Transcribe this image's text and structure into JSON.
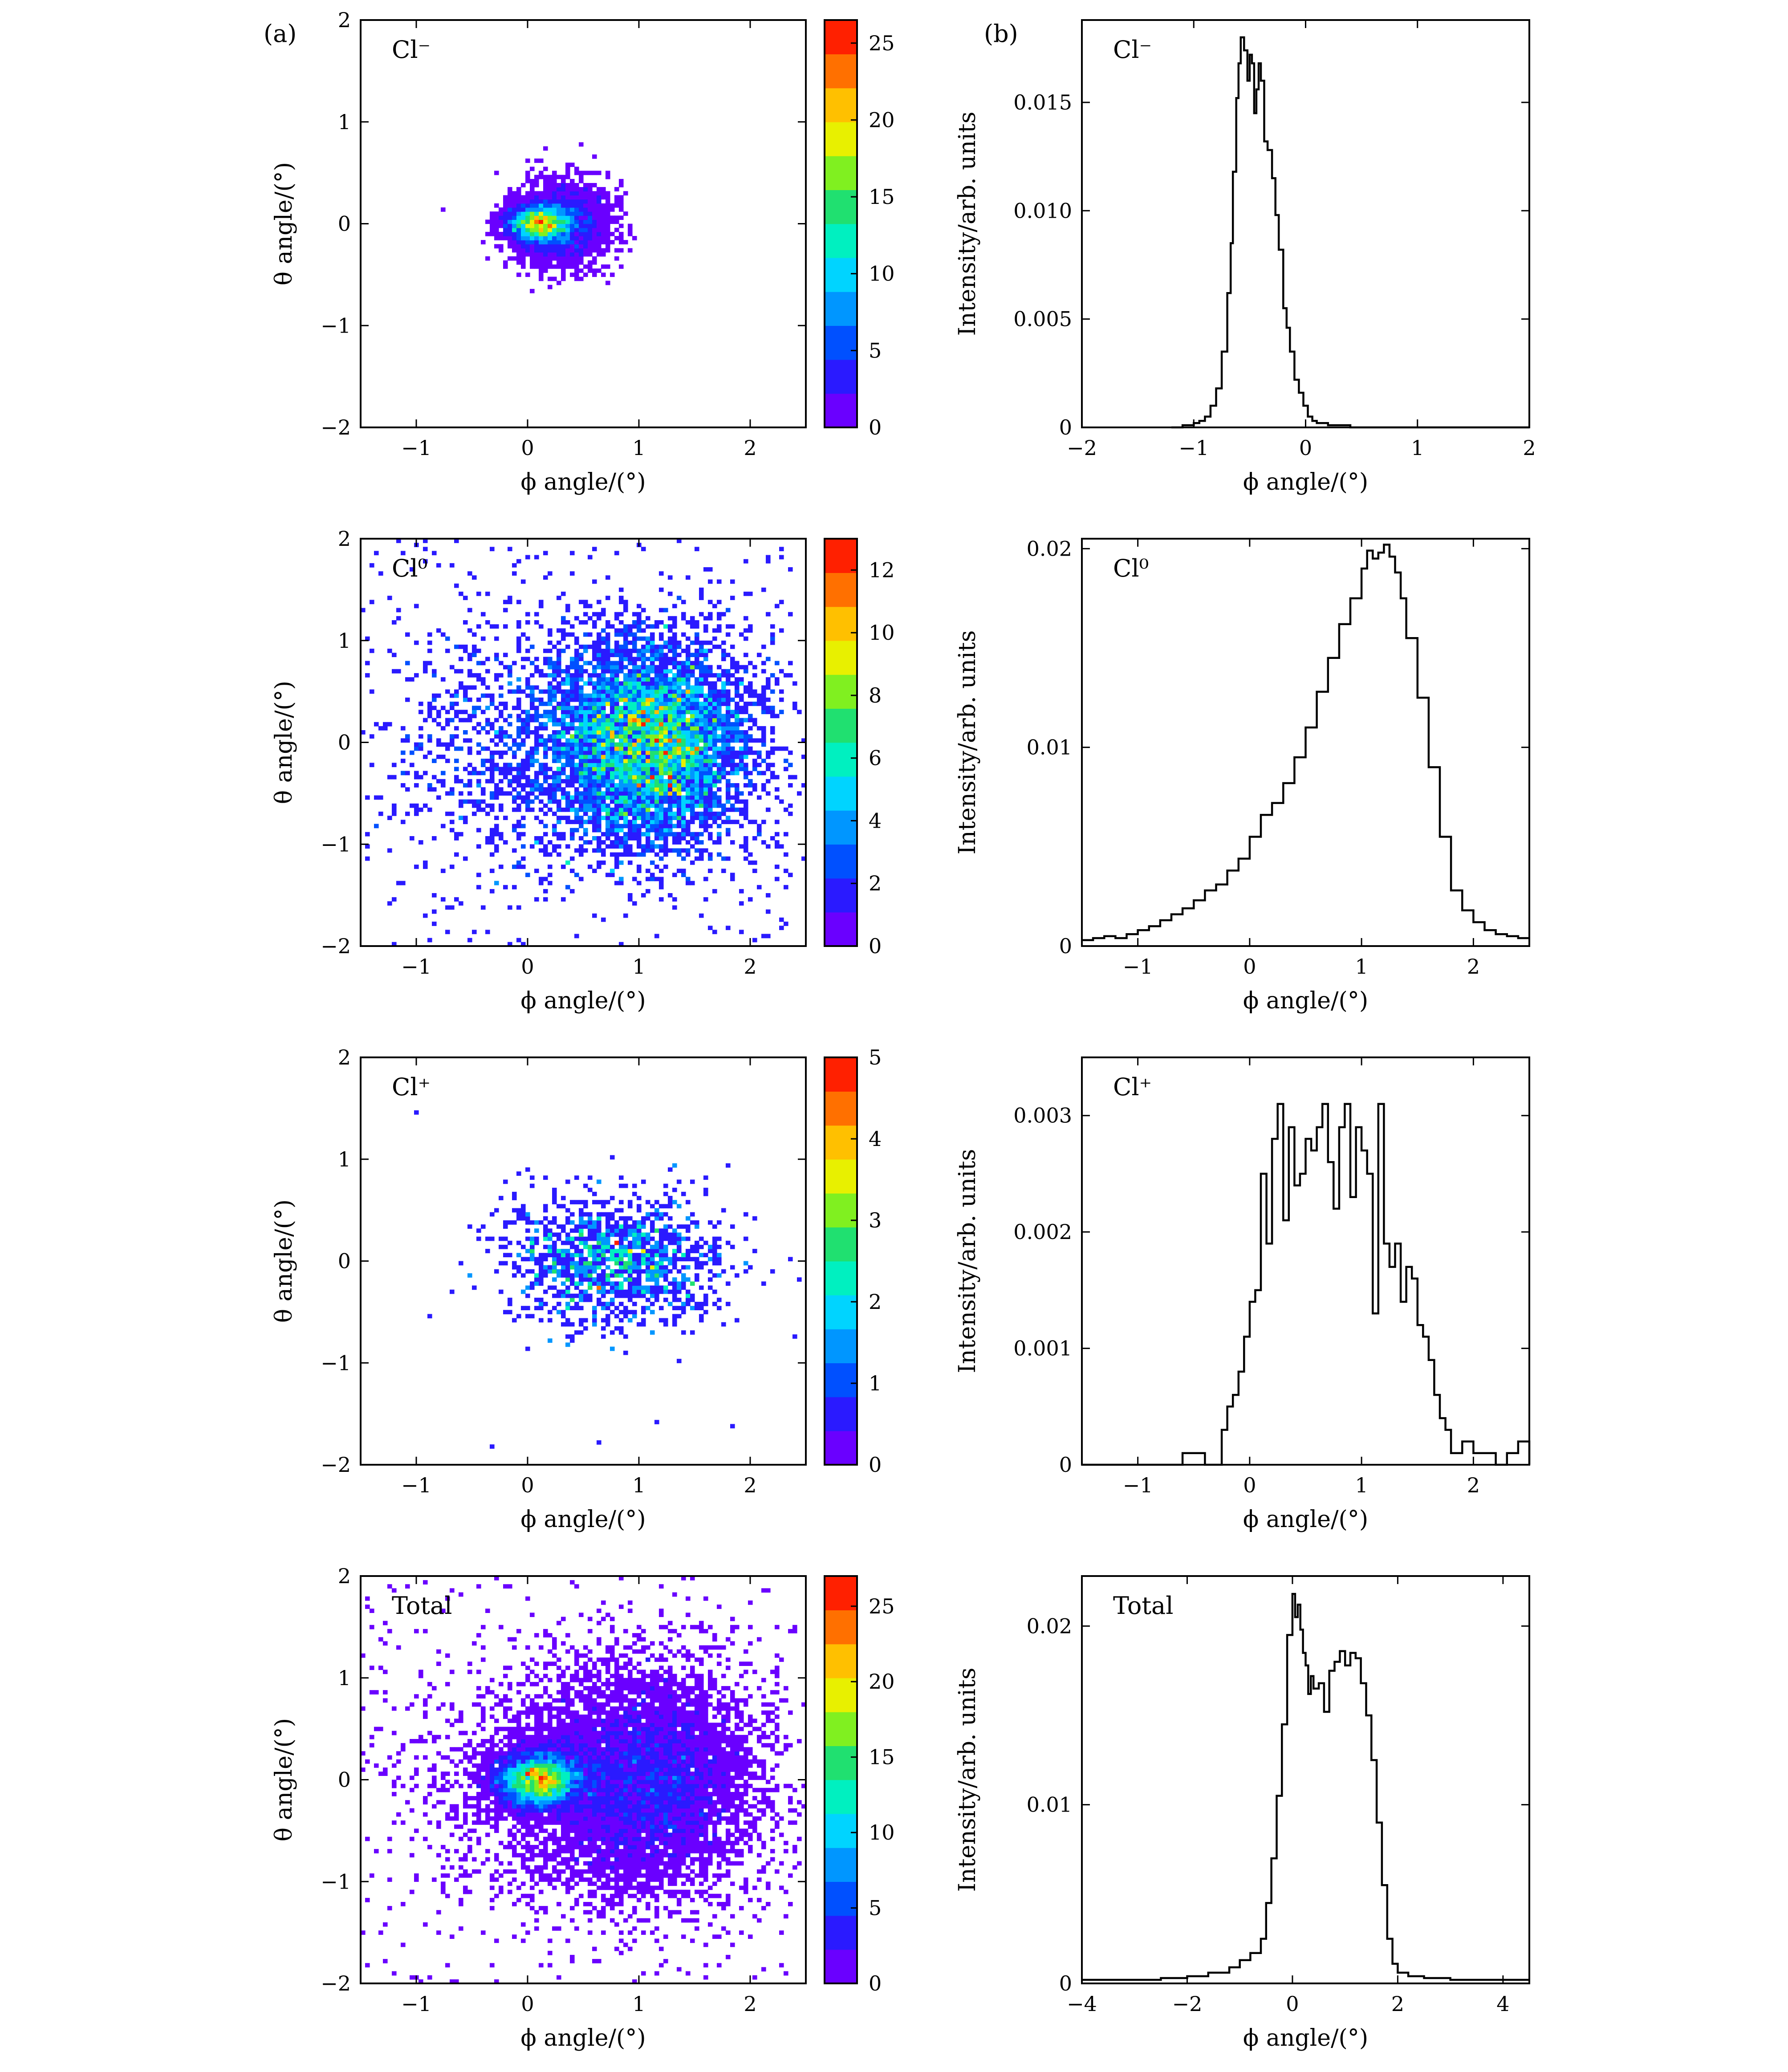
{
  "figure": {
    "panel_a_label": "(a)",
    "panel_b_label": "(b)"
  },
  "colorscale": [
    "#6a00ff",
    "#2a1aff",
    "#0050ff",
    "#0096ff",
    "#00d4ff",
    "#00f0c0",
    "#20e070",
    "#80f020",
    "#e8f000",
    "#ffc000",
    "#ff7000",
    "#ff2000"
  ],
  "chart_data": [
    {
      "type": "heatmap",
      "panel": "a",
      "row": 0,
      "label": "Cl⁻",
      "xlabel": "ϕ angle/(°)",
      "ylabel": "θ angle/(°)",
      "xlim": [
        -1.5,
        2.5
      ],
      "ylim": [
        -2,
        2
      ],
      "xticks": [
        -1,
        0,
        1,
        2
      ],
      "xtick_labels": [
        "−1",
        "0",
        "1",
        "2"
      ],
      "yticks": [
        -2,
        -1,
        0,
        1,
        2
      ],
      "ytick_labels": [
        "−2",
        "−1",
        "0",
        "1",
        "2"
      ],
      "colorbar": {
        "min": 0,
        "max": 26.5,
        "ticks": [
          0,
          5,
          10,
          15,
          20,
          25
        ],
        "tick_labels": [
          "0",
          "5",
          "10",
          "15",
          "20",
          "25"
        ]
      },
      "distribution": {
        "counts": 5200,
        "components": [
          {
            "weight": 0.55,
            "mx": 0.1,
            "my": 0.0,
            "sx": 0.15,
            "sy": 0.1
          },
          {
            "weight": 0.45,
            "mx": 0.3,
            "my": 0.0,
            "sx": 0.22,
            "sy": 0.2
          }
        ],
        "uniform_background": 0,
        "peak": 26
      }
    },
    {
      "type": "line",
      "panel": "b",
      "row": 0,
      "label": "Cl⁻",
      "xlabel": "ϕ angle/(°)",
      "ylabel": "Intensity/arb. units",
      "xlim": [
        -2,
        2
      ],
      "ylim": [
        0,
        0.0188
      ],
      "xticks": [
        -2,
        -1,
        0,
        1,
        2
      ],
      "xtick_labels": [
        "−2",
        "−1",
        "0",
        "1",
        "2"
      ],
      "yticks": [
        0,
        0.005,
        0.01,
        0.015
      ],
      "ytick_labels": [
        "0",
        "0.005",
        "0.010",
        "0.015"
      ],
      "step": true,
      "x": [
        -1.2,
        -1.1,
        -1.0,
        -0.95,
        -0.9,
        -0.85,
        -0.8,
        -0.75,
        -0.7,
        -0.67,
        -0.65,
        -0.62,
        -0.6,
        -0.58,
        -0.55,
        -0.52,
        -0.5,
        -0.48,
        -0.46,
        -0.44,
        -0.42,
        -0.4,
        -0.37,
        -0.34,
        -0.3,
        -0.27,
        -0.24,
        -0.2,
        -0.17,
        -0.14,
        -0.1,
        -0.06,
        -0.02,
        0.02,
        0.06,
        0.1,
        0.15,
        0.2,
        0.3,
        0.4,
        0.5
      ],
      "y": [
        0,
        0.0001,
        0.0002,
        0.0003,
        0.0005,
        0.001,
        0.0018,
        0.0035,
        0.0062,
        0.0085,
        0.0118,
        0.0152,
        0.0168,
        0.018,
        0.0174,
        0.016,
        0.0172,
        0.0168,
        0.0145,
        0.0156,
        0.0168,
        0.016,
        0.0132,
        0.0128,
        0.0115,
        0.0098,
        0.0082,
        0.0055,
        0.0046,
        0.0035,
        0.0022,
        0.0016,
        0.001,
        0.0005,
        0.0003,
        0.0002,
        0.0002,
        0.0001,
        0.0001,
        0.0,
        0.0
      ]
    },
    {
      "type": "heatmap",
      "panel": "a",
      "row": 1,
      "label": "Cl⁰",
      "xlabel": "ϕ angle/(°)",
      "ylabel": "θ angle/(°)",
      "xlim": [
        -1.5,
        2.5
      ],
      "ylim": [
        -2,
        2
      ],
      "xticks": [
        -1,
        0,
        1,
        2
      ],
      "xtick_labels": [
        "−1",
        "0",
        "1",
        "2"
      ],
      "yticks": [
        -2,
        -1,
        0,
        1,
        2
      ],
      "ytick_labels": [
        "−2",
        "−1",
        "0",
        "1",
        "2"
      ],
      "colorbar": {
        "min": 0,
        "max": 13,
        "ticks": [
          0,
          2,
          4,
          6,
          8,
          10,
          12
        ],
        "tick_labels": [
          "0",
          "2",
          "4",
          "6",
          "8",
          "10",
          "12"
        ]
      },
      "distribution": {
        "counts": 6500,
        "components": [
          {
            "weight": 0.72,
            "mx": 1.15,
            "my": 0.0,
            "sx": 0.42,
            "sy": 0.5
          },
          {
            "weight": 0.28,
            "mx": 0.4,
            "my": 0.0,
            "sx": 0.7,
            "sy": 0.6
          }
        ],
        "uniform_background": 320,
        "peak": 12
      }
    },
    {
      "type": "line",
      "panel": "b",
      "row": 1,
      "label": "Cl⁰",
      "xlabel": "ϕ angle/(°)",
      "ylabel": "Intensity/arb. units",
      "xlim": [
        -1.5,
        2.5
      ],
      "ylim": [
        0,
        0.0205
      ],
      "xticks": [
        -1,
        0,
        1,
        2
      ],
      "xtick_labels": [
        "−1",
        "0",
        "1",
        "2"
      ],
      "yticks": [
        0,
        0.01,
        0.02
      ],
      "ytick_labels": [
        "0",
        "0.01",
        "0.02"
      ],
      "step": true,
      "x": [
        -1.5,
        -1.4,
        -1.3,
        -1.2,
        -1.1,
        -1.0,
        -0.9,
        -0.8,
        -0.7,
        -0.6,
        -0.5,
        -0.4,
        -0.3,
        -0.2,
        -0.1,
        0.0,
        0.1,
        0.2,
        0.3,
        0.4,
        0.5,
        0.6,
        0.7,
        0.8,
        0.9,
        1.0,
        1.05,
        1.1,
        1.15,
        1.2,
        1.25,
        1.3,
        1.35,
        1.4,
        1.5,
        1.6,
        1.7,
        1.8,
        1.9,
        2.0,
        2.1,
        2.2,
        2.3,
        2.4,
        2.5
      ],
      "y": [
        0.0003,
        0.0004,
        0.0005,
        0.0004,
        0.0006,
        0.0008,
        0.001,
        0.0013,
        0.0016,
        0.0019,
        0.0023,
        0.0028,
        0.0031,
        0.0038,
        0.0044,
        0.0055,
        0.0066,
        0.0072,
        0.0082,
        0.0095,
        0.011,
        0.0128,
        0.0145,
        0.0162,
        0.0175,
        0.019,
        0.0199,
        0.0195,
        0.0198,
        0.0202,
        0.0196,
        0.0188,
        0.0175,
        0.0155,
        0.0125,
        0.009,
        0.0055,
        0.0028,
        0.0018,
        0.0012,
        0.0008,
        0.0006,
        0.0005,
        0.0004,
        0.0004
      ]
    },
    {
      "type": "heatmap",
      "panel": "a",
      "row": 2,
      "label": "Cl⁺",
      "xlabel": "ϕ angle/(°)",
      "ylabel": "θ angle/(°)",
      "xlim": [
        -1.5,
        2.5
      ],
      "ylim": [
        -2,
        2
      ],
      "xticks": [
        -1,
        0,
        1,
        2
      ],
      "xtick_labels": [
        "−1",
        "0",
        "1",
        "2"
      ],
      "yticks": [
        -2,
        -1,
        0,
        1,
        2
      ],
      "ytick_labels": [
        "−2",
        "−1",
        "0",
        "1",
        "2"
      ],
      "colorbar": {
        "min": 0,
        "max": 5,
        "ticks": [
          0,
          1,
          2,
          3,
          4,
          5
        ],
        "tick_labels": [
          "0",
          "1",
          "2",
          "3",
          "4",
          "5"
        ]
      },
      "distribution": {
        "counts": 1250,
        "components": [
          {
            "weight": 1.0,
            "mx": 0.8,
            "my": 0.0,
            "sx": 0.5,
            "sy": 0.32
          }
        ],
        "uniform_background": 12,
        "peak": 5
      }
    },
    {
      "type": "line",
      "panel": "b",
      "row": 2,
      "label": "Cl⁺",
      "xlabel": "ϕ angle/(°)",
      "ylabel": "Intensity/arb. units",
      "xlim": [
        -1.5,
        2.5
      ],
      "ylim": [
        0,
        0.0035
      ],
      "xticks": [
        -1,
        0,
        1,
        2
      ],
      "xtick_labels": [
        "−1",
        "0",
        "1",
        "2"
      ],
      "yticks": [
        0,
        0.001,
        0.002,
        0.003
      ],
      "ytick_labels": [
        "0",
        "0.001",
        "0.002",
        "0.003"
      ],
      "step": true,
      "x": [
        -1.5,
        -0.6,
        -0.4,
        -0.25,
        -0.2,
        -0.15,
        -0.1,
        -0.05,
        0.0,
        0.05,
        0.1,
        0.15,
        0.2,
        0.25,
        0.3,
        0.35,
        0.4,
        0.45,
        0.5,
        0.55,
        0.6,
        0.65,
        0.7,
        0.75,
        0.8,
        0.85,
        0.9,
        0.95,
        1.0,
        1.05,
        1.1,
        1.15,
        1.2,
        1.25,
        1.3,
        1.35,
        1.4,
        1.45,
        1.5,
        1.55,
        1.6,
        1.65,
        1.7,
        1.75,
        1.8,
        1.9,
        2.0,
        2.1,
        2.2,
        2.3,
        2.4,
        2.5
      ],
      "y": [
        0,
        0.0001,
        0.0,
        0.0003,
        0.0005,
        0.0006,
        0.0008,
        0.0011,
        0.0014,
        0.0015,
        0.0025,
        0.0019,
        0.0028,
        0.0031,
        0.0021,
        0.0029,
        0.0024,
        0.0025,
        0.0028,
        0.0027,
        0.0029,
        0.0031,
        0.0026,
        0.0022,
        0.0029,
        0.0031,
        0.0023,
        0.0029,
        0.0027,
        0.0025,
        0.0013,
        0.0031,
        0.0019,
        0.0017,
        0.0019,
        0.0014,
        0.0017,
        0.0016,
        0.0012,
        0.0011,
        0.0009,
        0.0006,
        0.0004,
        0.0003,
        0.0001,
        0.0002,
        0.0001,
        0.0001,
        0.0,
        0.0001,
        0.0002,
        0.0
      ]
    },
    {
      "type": "heatmap",
      "panel": "a",
      "row": 3,
      "label": "Total",
      "xlabel": "ϕ angle/(°)",
      "ylabel": "θ angle/(°)",
      "xlim": [
        -1.5,
        2.5
      ],
      "ylim": [
        -2,
        2
      ],
      "xticks": [
        -1,
        0,
        1,
        2
      ],
      "xtick_labels": [
        "−1",
        "0",
        "1",
        "2"
      ],
      "yticks": [
        -2,
        -1,
        0,
        1,
        2
      ],
      "ytick_labels": [
        "−2",
        "−1",
        "0",
        "1",
        "2"
      ],
      "colorbar": {
        "min": 0,
        "max": 27,
        "ticks": [
          0,
          5,
          10,
          15,
          20,
          25
        ],
        "tick_labels": [
          "0",
          "5",
          "10",
          "15",
          "20",
          "25"
        ]
      },
      "distribution": {
        "counts": 13000,
        "components": [
          {
            "weight": 0.38,
            "mx": 0.1,
            "my": 0.0,
            "sx": 0.2,
            "sy": 0.14
          },
          {
            "weight": 0.45,
            "mx": 1.1,
            "my": 0.0,
            "sx": 0.45,
            "sy": 0.52
          },
          {
            "weight": 0.17,
            "mx": 0.5,
            "my": 0.0,
            "sx": 0.7,
            "sy": 0.6
          }
        ],
        "uniform_background": 380,
        "peak": 27
      }
    },
    {
      "type": "line",
      "panel": "b",
      "row": 3,
      "label": "Total",
      "xlabel": "ϕ angle/(°)",
      "ylabel": "Intensity/arb. units",
      "xlim": [
        -4,
        4.5
      ],
      "ylim": [
        0,
        0.0228
      ],
      "xticks": [
        -4,
        -2,
        0,
        2,
        4
      ],
      "xtick_labels": [
        "−4",
        "−2",
        "0",
        "2",
        "4"
      ],
      "yticks": [
        0,
        0.01,
        0.02
      ],
      "ytick_labels": [
        "0",
        "0.01",
        "0.02"
      ],
      "step": true,
      "x": [
        -4.0,
        -3.5,
        -3.0,
        -2.5,
        -2.0,
        -1.6,
        -1.2,
        -1.0,
        -0.8,
        -0.6,
        -0.5,
        -0.4,
        -0.3,
        -0.2,
        -0.1,
        0.0,
        0.05,
        0.1,
        0.15,
        0.2,
        0.25,
        0.3,
        0.35,
        0.4,
        0.5,
        0.6,
        0.7,
        0.8,
        0.9,
        1.0,
        1.1,
        1.2,
        1.3,
        1.4,
        1.5,
        1.6,
        1.7,
        1.8,
        1.9,
        2.0,
        2.2,
        2.5,
        3.0,
        3.5,
        4.0,
        4.5
      ],
      "y": [
        0.0002,
        0.0002,
        0.0002,
        0.0003,
        0.0004,
        0.0006,
        0.0009,
        0.0013,
        0.0017,
        0.0025,
        0.0045,
        0.007,
        0.0105,
        0.0145,
        0.0195,
        0.0218,
        0.0205,
        0.0212,
        0.0198,
        0.0185,
        0.0178,
        0.0162,
        0.0172,
        0.0165,
        0.0168,
        0.0152,
        0.0175,
        0.018,
        0.0186,
        0.0178,
        0.0185,
        0.0182,
        0.0168,
        0.015,
        0.0125,
        0.009,
        0.0055,
        0.0025,
        0.0011,
        0.0006,
        0.0004,
        0.0003,
        0.0002,
        0.0002,
        0.0002,
        0.0002
      ]
    }
  ]
}
